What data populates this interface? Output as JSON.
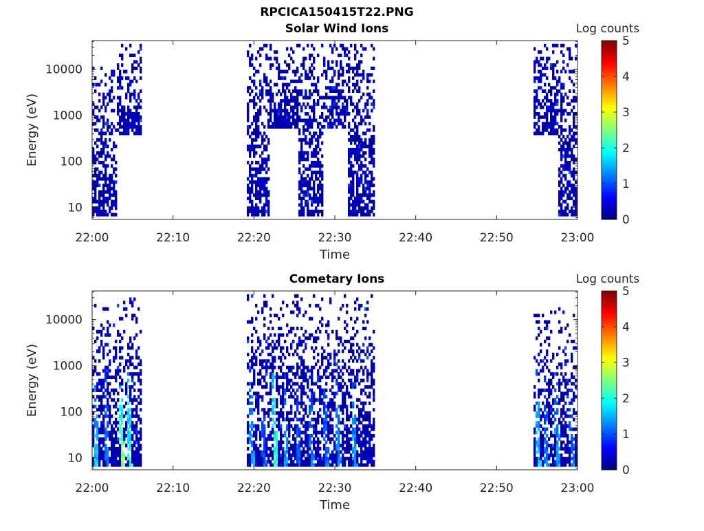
{
  "figure_title": "RPCICA150415T22.PNG",
  "chart_data": [
    {
      "type": "heatmap",
      "title": "Solar Wind Ions",
      "xlabel": "Time",
      "ylabel": "Energy (eV)",
      "x_ticks": [
        "22:00",
        "22:10",
        "22:20",
        "22:30",
        "22:40",
        "22:50",
        "23:00"
      ],
      "x_range": [
        "22:00",
        "23:00"
      ],
      "y_ticks": [
        10,
        100,
        1000,
        10000
      ],
      "y_tick_labels": [
        "10",
        "100",
        "1000",
        "10000"
      ],
      "y_scale": "log",
      "y_range": [
        5.5,
        42000
      ],
      "colorbar": {
        "label": "Log counts",
        "range": [
          0,
          5
        ],
        "ticks": [
          0,
          1,
          2,
          3,
          4,
          5
        ],
        "tick_labels": [
          "0",
          "1",
          "2",
          "3",
          "4",
          "5"
        ],
        "colormap": "jet"
      },
      "activity_intervals": [
        {
          "start_min": 0.0,
          "end_min": 3.0,
          "energy_min_eV": 6,
          "energy_max_eV": 12000,
          "peak_log_counts": 1.8
        },
        {
          "start_min": 3.0,
          "end_min": 6.0,
          "energy_min_eV": 400,
          "energy_max_eV": 38000,
          "peak_log_counts": 1.3
        },
        {
          "start_min": 19.0,
          "end_min": 22.0,
          "energy_min_eV": 6,
          "energy_max_eV": 38000,
          "peak_log_counts": 1.1
        },
        {
          "start_min": 22.0,
          "end_min": 25.5,
          "energy_min_eV": 500,
          "energy_max_eV": 38000,
          "peak_log_counts": 1.0
        },
        {
          "start_min": 25.5,
          "end_min": 28.5,
          "energy_min_eV": 6,
          "energy_max_eV": 38000,
          "peak_log_counts": 1.2
        },
        {
          "start_min": 28.5,
          "end_min": 31.5,
          "energy_min_eV": 500,
          "energy_max_eV": 38000,
          "peak_log_counts": 1.0
        },
        {
          "start_min": 31.5,
          "end_min": 35.0,
          "energy_min_eV": 6,
          "energy_max_eV": 38000,
          "peak_log_counts": 1.1
        },
        {
          "start_min": 54.5,
          "end_min": 57.5,
          "energy_min_eV": 350,
          "energy_max_eV": 38000,
          "peak_log_counts": 1.3
        },
        {
          "start_min": 57.5,
          "end_min": 60.0,
          "energy_min_eV": 6,
          "energy_max_eV": 38000,
          "peak_log_counts": 1.4
        }
      ]
    },
    {
      "type": "heatmap",
      "title": "Cometary Ions",
      "xlabel": "Time",
      "ylabel": "Energy (eV)",
      "x_ticks": [
        "22:00",
        "22:10",
        "22:20",
        "22:30",
        "22:40",
        "22:50",
        "23:00"
      ],
      "x_range": [
        "22:00",
        "23:00"
      ],
      "y_ticks": [
        10,
        100,
        1000,
        10000
      ],
      "y_tick_labels": [
        "10",
        "100",
        "1000",
        "10000"
      ],
      "y_scale": "log",
      "y_range": [
        5.5,
        42000
      ],
      "colorbar": {
        "label": "Log counts",
        "range": [
          0,
          5
        ],
        "ticks": [
          0,
          1,
          2,
          3,
          4,
          5
        ],
        "tick_labels": [
          "0",
          "1",
          "2",
          "3",
          "4",
          "5"
        ],
        "colormap": "jet"
      },
      "activity_intervals": [
        {
          "start_min": 0.0,
          "end_min": 6.0,
          "energy_min_eV": 6,
          "energy_max_eV": 30000,
          "peak_log_counts": 3.2
        },
        {
          "start_min": 19.0,
          "end_min": 35.0,
          "energy_min_eV": 6,
          "energy_max_eV": 38000,
          "peak_log_counts": 2.8
        },
        {
          "start_min": 54.5,
          "end_min": 60.0,
          "energy_min_eV": 6,
          "energy_max_eV": 18000,
          "peak_log_counts": 2.3
        }
      ],
      "streaks": [
        {
          "start_min": 0.2,
          "log_counts": 2.0,
          "energy_top_eV": 700
        },
        {
          "start_min": 1.5,
          "log_counts": 1.5,
          "energy_top_eV": 800
        },
        {
          "start_min": 3.4,
          "log_counts": 3.0,
          "energy_top_eV": 400
        },
        {
          "start_min": 4.3,
          "log_counts": 2.4,
          "energy_top_eV": 900
        },
        {
          "start_min": 19.4,
          "log_counts": 1.8,
          "energy_top_eV": 1000
        },
        {
          "start_min": 20.9,
          "log_counts": 1.3,
          "energy_top_eV": 300
        },
        {
          "start_min": 22.3,
          "log_counts": 2.6,
          "energy_top_eV": 700
        },
        {
          "start_min": 23.6,
          "log_counts": 1.6,
          "energy_top_eV": 800
        },
        {
          "start_min": 25.2,
          "log_counts": 1.3,
          "energy_top_eV": 500
        },
        {
          "start_min": 26.8,
          "log_counts": 1.5,
          "energy_top_eV": 900
        },
        {
          "start_min": 28.6,
          "log_counts": 1.4,
          "energy_top_eV": 600
        },
        {
          "start_min": 30.1,
          "log_counts": 1.6,
          "energy_top_eV": 700
        },
        {
          "start_min": 32.1,
          "log_counts": 1.8,
          "energy_top_eV": 500
        },
        {
          "start_min": 54.8,
          "log_counts": 2.0,
          "energy_top_eV": 800
        },
        {
          "start_min": 55.8,
          "log_counts": 1.5,
          "energy_top_eV": 600
        },
        {
          "start_min": 57.2,
          "log_counts": 1.7,
          "energy_top_eV": 900
        },
        {
          "start_min": 59.0,
          "log_counts": 1.4,
          "energy_top_eV": 400
        }
      ]
    }
  ]
}
